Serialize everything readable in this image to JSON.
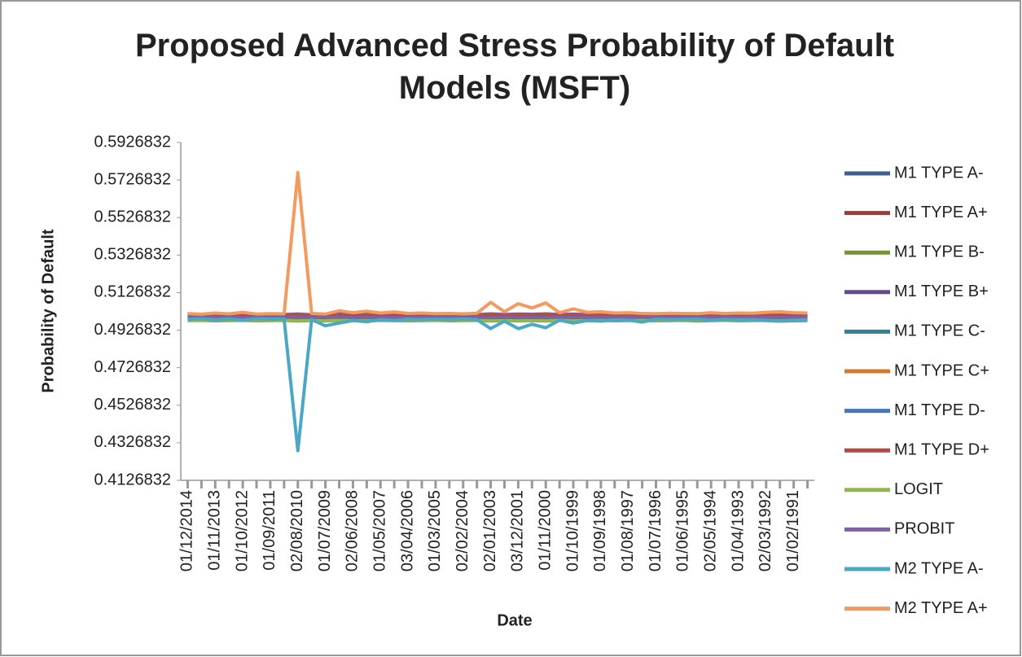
{
  "chart_data": {
    "type": "line",
    "title": "Proposed Advanced Stress Probability of Default Models (MSFT)",
    "x_label": "Date",
    "y_label": "Probability of Default",
    "categories": [
      "01/12/2014",
      null,
      "01/11/2013",
      null,
      "01/10/2012",
      null,
      "01/09/2011",
      null,
      "02/08/2010",
      null,
      "01/07/2009",
      null,
      "02/06/2008",
      null,
      "01/05/2007",
      null,
      "03/04/2006",
      null,
      "01/03/2005",
      null,
      "02/02/2004",
      null,
      "02/01/2003",
      null,
      "03/12/2001",
      null,
      "01/11/2000",
      null,
      "01/10/1999",
      null,
      "01/09/1998",
      null,
      "01/08/1997",
      null,
      "01/07/1996",
      null,
      "01/06/1995",
      null,
      "02/05/1994",
      null,
      "01/04/1993",
      null,
      "02/03/1992",
      null,
      "01/02/1991",
      null
    ],
    "ylim": [
      0.4126832,
      0.5926832
    ],
    "yticks": [
      0.4126832,
      0.4326832,
      0.4526832,
      0.4726832,
      0.4926832,
      0.5126832,
      0.5326832,
      0.5526832,
      0.5726832,
      0.5926832
    ],
    "grid": false,
    "legend": "right",
    "series": [
      {
        "name": "M1 TYPE A-",
        "color": "#3f5f8f",
        "values": [
          0.5003,
          0.5004,
          0.5002,
          0.5004,
          0.5003,
          0.5002,
          0.5004,
          0.5003,
          0.5005,
          0.5002,
          0.5003,
          0.5004,
          0.5002,
          0.5003,
          0.5004,
          0.5002,
          0.5003,
          0.5004,
          0.5003,
          0.5002,
          0.5004,
          0.5003,
          0.5006,
          0.5003,
          0.5005,
          0.5004,
          0.5006,
          0.5003,
          0.5004,
          0.5003,
          0.5002,
          0.5004,
          0.5003,
          0.5002,
          0.5004,
          0.5003,
          0.5002,
          0.5004,
          0.5003,
          0.5002,
          0.5004,
          0.5003,
          0.5002,
          0.5004,
          0.5003,
          0.5002
        ]
      },
      {
        "name": "M1 TYPE A+",
        "color": "#9e3b38",
        "values": [
          0.5008,
          0.5009,
          0.5007,
          0.501,
          0.5008,
          0.5007,
          0.5009,
          0.5008,
          0.5012,
          0.5007,
          0.5008,
          0.501,
          0.5008,
          0.5009,
          0.5008,
          0.5007,
          0.5009,
          0.5008,
          0.5007,
          0.5009,
          0.5008,
          0.5007,
          0.5012,
          0.5008,
          0.5011,
          0.5009,
          0.5012,
          0.5008,
          0.501,
          0.5008,
          0.5009,
          0.5007,
          0.5012,
          0.5008,
          0.5009,
          0.5007,
          0.5008,
          0.5009,
          0.5008,
          0.5007,
          0.5009,
          0.5008,
          0.501,
          0.5009,
          0.5008,
          0.5007
        ]
      },
      {
        "name": "M1 TYPE B-",
        "color": "#79913d",
        "values": [
          0.4978,
          0.4979,
          0.4977,
          0.4978,
          0.4979,
          0.4977,
          0.4978,
          0.4979,
          0.4976,
          0.4978,
          0.4977,
          0.4979,
          0.4978,
          0.4977,
          0.4979,
          0.4978,
          0.4977,
          0.4978,
          0.4979,
          0.4977,
          0.4978,
          0.4979,
          0.4976,
          0.4978,
          0.4977,
          0.4978,
          0.4976,
          0.4979,
          0.4977,
          0.4978,
          0.4979,
          0.4977,
          0.4978,
          0.4979,
          0.4977,
          0.4978,
          0.4979,
          0.4976,
          0.4978,
          0.4979,
          0.4977,
          0.4978,
          0.4979,
          0.4975,
          0.4977,
          0.4978
        ]
      },
      {
        "name": "M1 TYPE B+",
        "color": "#644d85",
        "values": [
          0.501,
          0.5011,
          0.5009,
          0.5012,
          0.501,
          0.5009,
          0.5011,
          0.501,
          0.5013,
          0.5009,
          0.501,
          0.5012,
          0.501,
          0.5011,
          0.501,
          0.5009,
          0.5011,
          0.501,
          0.5009,
          0.5011,
          0.501,
          0.5009,
          0.5014,
          0.501,
          0.5013,
          0.5011,
          0.5014,
          0.501,
          0.5012,
          0.501,
          0.5011,
          0.5009,
          0.501,
          0.5011,
          0.5009,
          0.501,
          0.5011,
          0.5009,
          0.501,
          0.5011,
          0.5009,
          0.501,
          0.5012,
          0.5011,
          0.501,
          0.5009
        ]
      },
      {
        "name": "M1 TYPE C-",
        "color": "#2f8196",
        "values": [
          0.4985,
          0.4986,
          0.4984,
          0.4985,
          0.4986,
          0.4984,
          0.4985,
          0.4986,
          0.4983,
          0.4985,
          0.4984,
          0.4986,
          0.4985,
          0.4984,
          0.4986,
          0.4985,
          0.4984,
          0.4985,
          0.4986,
          0.4984,
          0.4985,
          0.4986,
          0.4983,
          0.4985,
          0.4984,
          0.4985,
          0.4983,
          0.4986,
          0.4984,
          0.4985,
          0.4986,
          0.4984,
          0.4985,
          0.4986,
          0.4984,
          0.4985,
          0.4986,
          0.4984,
          0.4985,
          0.4986,
          0.4984,
          0.4985,
          0.4986,
          0.4984,
          0.4985,
          0.4986
        ]
      },
      {
        "name": "M1 TYPE C+",
        "color": "#d47a2f",
        "values": [
          0.5006,
          0.5007,
          0.5005,
          0.5007,
          0.5006,
          0.5005,
          0.5007,
          0.5006,
          0.5009,
          0.5005,
          0.5006,
          0.5008,
          0.5006,
          0.5007,
          0.5006,
          0.5005,
          0.5007,
          0.5006,
          0.5005,
          0.5007,
          0.5006,
          0.5005,
          0.501,
          0.5006,
          0.5009,
          0.5007,
          0.501,
          0.5006,
          0.5008,
          0.5006,
          0.5007,
          0.5005,
          0.5006,
          0.5007,
          0.5005,
          0.5006,
          0.5007,
          0.5005,
          0.5006,
          0.5007,
          0.5005,
          0.5006,
          0.5008,
          0.5007,
          0.5006,
          0.5005
        ]
      },
      {
        "name": "M1 TYPE D-",
        "color": "#4a76b8",
        "values": [
          0.499,
          0.4991,
          0.4989,
          0.499,
          0.4991,
          0.4989,
          0.499,
          0.4991,
          0.4988,
          0.499,
          0.4989,
          0.4991,
          0.499,
          0.4989,
          0.4991,
          0.499,
          0.4989,
          0.499,
          0.4991,
          0.4989,
          0.499,
          0.4991,
          0.4988,
          0.499,
          0.4989,
          0.499,
          0.4988,
          0.4991,
          0.4989,
          0.499,
          0.4991,
          0.4989,
          0.499,
          0.4991,
          0.4989,
          0.499,
          0.4991,
          0.4989,
          0.499,
          0.4991,
          0.4989,
          0.499,
          0.4991,
          0.4989,
          0.499,
          0.4991
        ]
      },
      {
        "name": "M1 TYPE D+",
        "color": "#b84743",
        "values": [
          0.5004,
          0.5005,
          0.5003,
          0.5005,
          0.5004,
          0.5003,
          0.5005,
          0.5004,
          0.5007,
          0.5003,
          0.5004,
          0.5006,
          0.5004,
          0.5005,
          0.5004,
          0.5003,
          0.5005,
          0.5004,
          0.5003,
          0.5005,
          0.5004,
          0.5003,
          0.5008,
          0.5004,
          0.5007,
          0.5005,
          0.5008,
          0.5004,
          0.5006,
          0.5004,
          0.5005,
          0.5003,
          0.5004,
          0.5005,
          0.5003,
          0.5004,
          0.5005,
          0.5003,
          0.5004,
          0.5005,
          0.5003,
          0.5004,
          0.5006,
          0.5005,
          0.5004,
          0.5003
        ]
      },
      {
        "name": "LOGIT",
        "color": "#92b84e",
        "values": [
          0.498,
          0.4981,
          0.4979,
          0.498,
          0.4981,
          0.4979,
          0.498,
          0.4981,
          0.4978,
          0.498,
          0.4979,
          0.4981,
          0.498,
          0.4979,
          0.4981,
          0.498,
          0.4979,
          0.498,
          0.4981,
          0.4979,
          0.498,
          0.4981,
          0.4978,
          0.498,
          0.4979,
          0.498,
          0.4978,
          0.4981,
          0.4979,
          0.498,
          0.4981,
          0.4979,
          0.498,
          0.4981,
          0.4979,
          0.498,
          0.4981,
          0.4979,
          0.498,
          0.4981,
          0.4979,
          0.498,
          0.4981,
          0.4978,
          0.498,
          0.4981
        ]
      },
      {
        "name": "PROBIT",
        "color": "#7d63a1",
        "values": [
          0.4995,
          0.4996,
          0.4994,
          0.4995,
          0.4996,
          0.4994,
          0.4995,
          0.4996,
          0.4994,
          0.4995,
          0.4994,
          0.4996,
          0.4995,
          0.4994,
          0.4996,
          0.4995,
          0.4994,
          0.4995,
          0.4996,
          0.4994,
          0.4995,
          0.4996,
          0.4994,
          0.4995,
          0.4994,
          0.4995,
          0.4994,
          0.4996,
          0.4994,
          0.4995,
          0.4996,
          0.4994,
          0.4995,
          0.4996,
          0.4994,
          0.4995,
          0.4996,
          0.4994,
          0.4995,
          0.4996,
          0.4994,
          0.4995,
          0.4996,
          0.4994,
          0.4995,
          0.4996
        ]
      },
      {
        "name": "M2 TYPE A-",
        "color": "#4aa8c4",
        "values": [
          0.4985,
          0.4988,
          0.4982,
          0.4986,
          0.498,
          0.4987,
          0.4985,
          0.4986,
          0.4285,
          0.4984,
          0.495,
          0.4965,
          0.4978,
          0.4972,
          0.4983,
          0.4978,
          0.4985,
          0.4983,
          0.4985,
          0.4984,
          0.4986,
          0.4983,
          0.4935,
          0.4975,
          0.4935,
          0.4958,
          0.494,
          0.498,
          0.4965,
          0.4978,
          0.4975,
          0.4982,
          0.498,
          0.497,
          0.4985,
          0.4983,
          0.4984,
          0.4985,
          0.498,
          0.4984,
          0.4982,
          0.4983,
          0.4978,
          0.4975,
          0.498,
          0.4982
        ]
      },
      {
        "name": "M2 TYPE A+",
        "color": "#f39a5f",
        "values": [
          0.5015,
          0.5012,
          0.5018,
          0.5014,
          0.5022,
          0.5013,
          0.5015,
          0.5014,
          0.5767,
          0.5016,
          0.5013,
          0.503,
          0.502,
          0.5028,
          0.5018,
          0.5024,
          0.5016,
          0.5018,
          0.5015,
          0.5016,
          0.5014,
          0.5017,
          0.5075,
          0.5025,
          0.5068,
          0.5045,
          0.5072,
          0.502,
          0.504,
          0.5022,
          0.5025,
          0.5018,
          0.502,
          0.5016,
          0.5015,
          0.5017,
          0.5016,
          0.5015,
          0.502,
          0.5016,
          0.5018,
          0.5017,
          0.5022,
          0.5025,
          0.502,
          0.5018
        ]
      }
    ]
  }
}
